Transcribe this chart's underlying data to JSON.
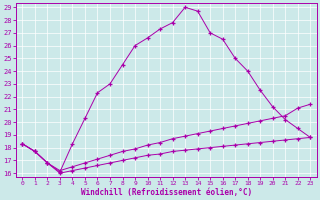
{
  "xlabel": "Windchill (Refroidissement éolien,°C)",
  "background_color": "#cce9e9",
  "line_color": "#aa00aa",
  "xlim": [
    -0.5,
    23.5
  ],
  "ylim": [
    15.7,
    29.3
  ],
  "xticks": [
    0,
    1,
    2,
    3,
    4,
    5,
    6,
    7,
    8,
    9,
    10,
    11,
    12,
    13,
    14,
    15,
    16,
    17,
    18,
    19,
    20,
    21,
    22,
    23
  ],
  "yticks": [
    16,
    17,
    18,
    19,
    20,
    21,
    22,
    23,
    24,
    25,
    26,
    27,
    28,
    29
  ],
  "line1_x": [
    0,
    1,
    2,
    3,
    4,
    5,
    6,
    7,
    8,
    9,
    10,
    11,
    12,
    13,
    14,
    15,
    16,
    17,
    18,
    19,
    20,
    21,
    22,
    23
  ],
  "line1_y": [
    18.3,
    17.7,
    16.8,
    16.0,
    16.2,
    16.4,
    16.6,
    16.8,
    17.0,
    17.2,
    17.4,
    17.5,
    17.7,
    17.8,
    17.9,
    18.0,
    18.1,
    18.2,
    18.3,
    18.4,
    18.5,
    18.6,
    18.7,
    18.8
  ],
  "line2_x": [
    0,
    1,
    2,
    3,
    4,
    5,
    6,
    7,
    8,
    9,
    10,
    11,
    12,
    13,
    14,
    15,
    16,
    17,
    18,
    19,
    20,
    21,
    22,
    23
  ],
  "line2_y": [
    18.3,
    17.7,
    16.8,
    16.2,
    16.5,
    16.8,
    17.1,
    17.4,
    17.7,
    17.9,
    18.2,
    18.4,
    18.7,
    18.9,
    19.1,
    19.3,
    19.5,
    19.7,
    19.9,
    20.1,
    20.3,
    20.5,
    21.1,
    21.4
  ],
  "line3_x": [
    0,
    1,
    2,
    3,
    4,
    5,
    6,
    7,
    8,
    9,
    10,
    11,
    12,
    13,
    14,
    15,
    16,
    17,
    18,
    19,
    20,
    21,
    22,
    23
  ],
  "line3_y": [
    18.3,
    17.7,
    16.8,
    16.1,
    18.3,
    20.3,
    22.3,
    23.0,
    24.5,
    26.0,
    26.6,
    27.3,
    27.8,
    29.0,
    28.7,
    27.0,
    26.5,
    25.0,
    24.0,
    22.5,
    21.2,
    20.2,
    19.5,
    18.8
  ]
}
